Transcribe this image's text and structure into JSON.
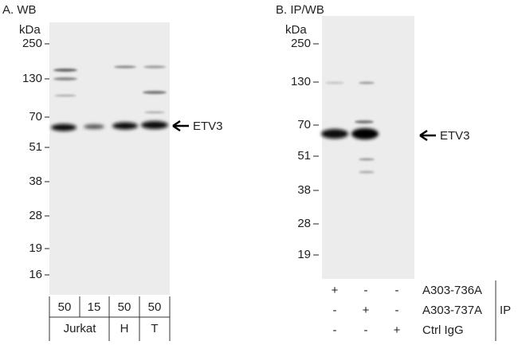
{
  "panel_a": {
    "title": "A. WB",
    "unit": "kDa",
    "markers": [
      250,
      130,
      70,
      51,
      38,
      28,
      19,
      16
    ],
    "loads": [
      50,
      15,
      50,
      50
    ],
    "groups": [
      "Jurkat",
      "H",
      "T"
    ],
    "arrow_label": "ETV3"
  },
  "panel_b": {
    "title": "B. IP/WB",
    "unit": "kDa",
    "markers": [
      250,
      130,
      70,
      51,
      38,
      28,
      19
    ],
    "arrow_label": "ETV3",
    "rows": [
      {
        "symbols": [
          "+",
          "-",
          "-"
        ],
        "label": "A303-736A"
      },
      {
        "symbols": [
          "-",
          "+",
          "-"
        ],
        "label": "A303-737A"
      },
      {
        "symbols": [
          "-",
          "-",
          "+"
        ],
        "label": "Ctrl IgG"
      }
    ],
    "ip_label": "IP"
  }
}
